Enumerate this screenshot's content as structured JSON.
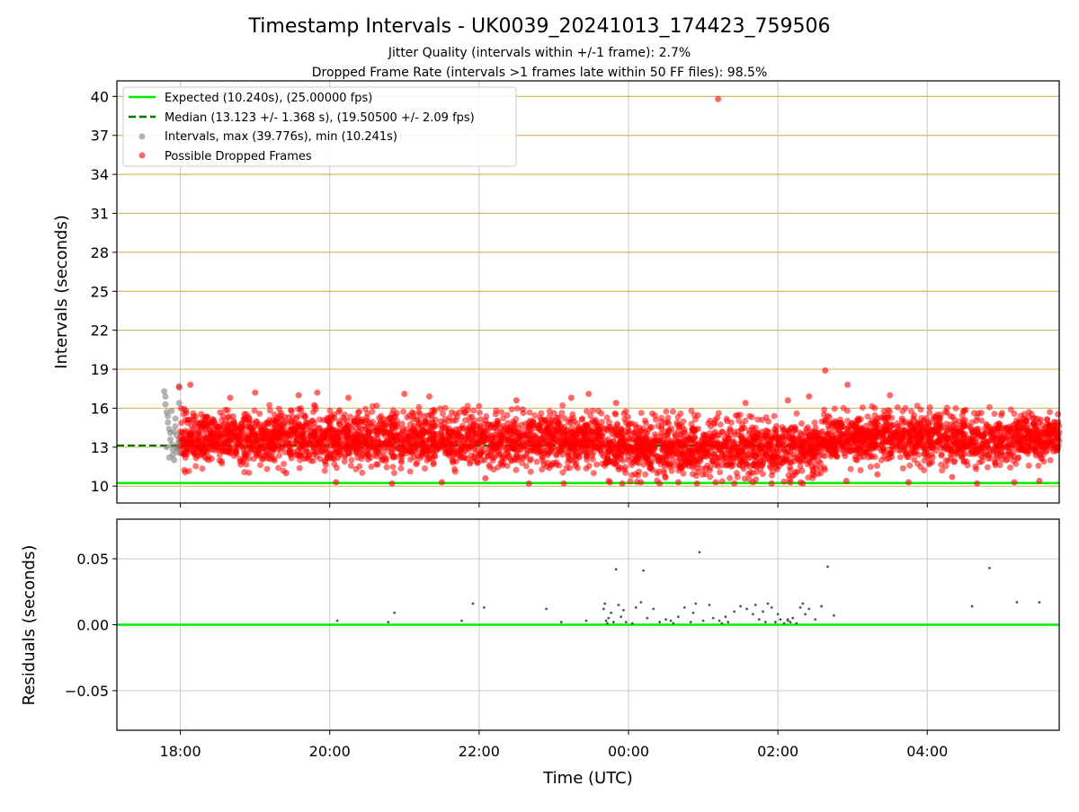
{
  "figure": {
    "title": "Timestamp Intervals - UK0039_20241013_174423_759506",
    "subtitle1": "Jitter Quality (intervals within +/-1 frame): 2.7%",
    "subtitle2": "Dropped Frame Rate (intervals >1 frames late within 50 FF files): 98.5%"
  },
  "colors": {
    "expected": "#00ee00",
    "median": "#007700",
    "intervals": "#808080",
    "dropped": "#ff0000",
    "hgrid": "#d4b864",
    "vgrid": "#c8c8c8",
    "residual": "#555555"
  },
  "chart_data": [
    {
      "type": "scatter",
      "ylabel": "Intervals (seconds)",
      "ylim": [
        8.7,
        41.2
      ],
      "xlim": [
        "17:09",
        "05:46"
      ],
      "yticks": [
        10,
        13,
        16,
        19,
        22,
        25,
        28,
        31,
        34,
        37,
        40
      ],
      "grid": true,
      "legend_position": "top-left",
      "legend": [
        {
          "label": "Expected (10.240s), (25.00000 fps)",
          "style": "line-solid"
        },
        {
          "label": "Median (13.123 +/- 1.368 s), (19.50500 +/- 2.09 fps)",
          "style": "line-dashed"
        },
        {
          "label": "Intervals, max (39.776s), min (10.241s)",
          "style": "dot-gray"
        },
        {
          "label": "Possible Dropped Frames",
          "style": "dot-red"
        }
      ],
      "expected_value": 10.24,
      "median_value": 13.123,
      "median_end": "02:55",
      "series": [
        {
          "name": "Intervals",
          "points": [
            [
              "17:47",
              17.3
            ],
            [
              "17:48",
              16.9
            ],
            [
              "17:48",
              16.3
            ],
            [
              "17:49",
              15.7
            ],
            [
              "17:50",
              15.4
            ],
            [
              "17:50",
              14.9
            ],
            [
              "17:51",
              14.4
            ],
            [
              "17:52",
              14.1
            ],
            [
              "17:52",
              13.6
            ],
            [
              "17:53",
              13.2
            ],
            [
              "17:54",
              12.8
            ],
            [
              "17:54",
              12.4
            ],
            [
              "17:55",
              12.0
            ],
            [
              "17:56",
              15.2
            ],
            [
              "17:56",
              14.6
            ],
            [
              "17:57",
              13.9
            ],
            [
              "17:58",
              13.3
            ],
            [
              "17:58",
              12.6
            ],
            [
              "17:59",
              17.7
            ],
            [
              "17:59",
              16.4
            ],
            [
              "17:49",
              13.0
            ],
            [
              "17:51",
              12.2
            ],
            [
              "17:53",
              15.8
            ],
            [
              "17:55",
              14.2
            ],
            [
              "17:57",
              12.9
            ]
          ]
        },
        {
          "name": "Possible Dropped Frames",
          "points": [
            [
              "01:12",
              39.8
            ],
            [
              "02:38",
              18.9
            ],
            [
              "02:56",
              17.8
            ],
            [
              "03:30",
              17.0
            ],
            [
              "17:59",
              17.6
            ],
            [
              "18:08",
              17.8
            ],
            [
              "18:40",
              16.8
            ],
            [
              "19:00",
              17.2
            ],
            [
              "19:35",
              17.0
            ],
            [
              "19:50",
              17.2
            ],
            [
              "20:15",
              16.8
            ],
            [
              "21:00",
              17.1
            ],
            [
              "21:20",
              16.9
            ],
            [
              "22:30",
              16.6
            ],
            [
              "23:14",
              16.8
            ],
            [
              "23:28",
              17.1
            ],
            [
              "23:50",
              16.4
            ],
            [
              "01:34",
              16.4
            ],
            [
              "02:08",
              16.6
            ],
            [
              "02:25",
              16.9
            ],
            [
              "20:05",
              10.3
            ],
            [
              "20:50",
              10.2
            ],
            [
              "21:30",
              10.3
            ],
            [
              "22:40",
              10.2
            ],
            [
              "23:08",
              10.2
            ],
            [
              "23:45",
              10.3
            ],
            [
              "23:55",
              10.2
            ],
            [
              "00:10",
              10.3
            ],
            [
              "00:25",
              10.2
            ],
            [
              "00:40",
              10.3
            ],
            [
              "00:55",
              10.2
            ],
            [
              "01:10",
              10.3
            ],
            [
              "01:25",
              10.2
            ],
            [
              "01:40",
              10.3
            ],
            [
              "01:55",
              10.2
            ],
            [
              "02:10",
              10.3
            ],
            [
              "02:20",
              10.2
            ],
            [
              "02:55",
              10.4
            ],
            [
              "03:45",
              10.3
            ],
            [
              "04:40",
              10.2
            ],
            [
              "05:10",
              10.3
            ],
            [
              "05:30",
              10.4
            ],
            [
              "19:25",
              11.0
            ],
            [
              "22:05",
              10.6
            ],
            [
              "03:20",
              10.9
            ],
            [
              "04:20",
              10.7
            ]
          ]
        }
      ],
      "dense_band": {
        "from": "17:59",
        "to": "05:46",
        "segments": [
          {
            "from": "17:59",
            "to": "23:40",
            "low": 11.0,
            "high": 16.3
          },
          {
            "from": "23:40",
            "to": "02:35",
            "low": 10.24,
            "high": 15.8
          },
          {
            "from": "02:35",
            "to": "05:46",
            "low": 11.2,
            "high": 16.2
          }
        ]
      }
    },
    {
      "type": "scatter",
      "xlabel": "Time (UTC)",
      "ylabel": "Residuals (seconds)",
      "ylim": [
        -0.08,
        0.08
      ],
      "yticks": [
        0.05,
        0.0,
        -0.05
      ],
      "ytick_labels": [
        "0.05",
        "0.00",
        "−0.05"
      ],
      "xticks": [
        "18:00",
        "20:00",
        "22:00",
        "00:00",
        "02:00",
        "04:00"
      ],
      "grid": true,
      "zero_line": 0.0,
      "series": [
        {
          "name": "Residuals",
          "points": [
            [
              "20:06",
              0.003
            ],
            [
              "20:47",
              0.002
            ],
            [
              "20:52",
              0.009
            ],
            [
              "21:46",
              0.003
            ],
            [
              "21:55",
              0.016
            ],
            [
              "22:04",
              0.013
            ],
            [
              "22:54",
              0.012
            ],
            [
              "23:06",
              0.002
            ],
            [
              "23:26",
              0.003
            ],
            [
              "23:40",
              0.012
            ],
            [
              "23:41",
              0.016
            ],
            [
              "23:42",
              0.003
            ],
            [
              "23:44",
              0.005
            ],
            [
              "23:46",
              0.009
            ],
            [
              "23:48",
              0.002
            ],
            [
              "23:50",
              0.042
            ],
            [
              "23:52",
              0.015
            ],
            [
              "23:54",
              0.006
            ],
            [
              "23:56",
              0.011
            ],
            [
              "23:58",
              0.002
            ],
            [
              "00:03",
              0.001
            ],
            [
              "00:06",
              0.013
            ],
            [
              "00:10",
              0.017
            ],
            [
              "00:12",
              0.041
            ],
            [
              "00:15",
              0.005
            ],
            [
              "00:20",
              0.012
            ],
            [
              "00:25",
              0.002
            ],
            [
              "00:30",
              0.004
            ],
            [
              "00:34",
              0.003
            ],
            [
              "00:40",
              0.006
            ],
            [
              "00:45",
              0.013
            ],
            [
              "00:50",
              0.002
            ],
            [
              "00:52",
              0.009
            ],
            [
              "00:54",
              0.016
            ],
            [
              "00:57",
              0.055
            ],
            [
              "01:00",
              0.003
            ],
            [
              "01:05",
              0.015
            ],
            [
              "01:08",
              0.005
            ],
            [
              "01:13",
              0.003
            ],
            [
              "01:15",
              0.001
            ],
            [
              "01:20",
              0.002
            ],
            [
              "01:25",
              0.01
            ],
            [
              "01:30",
              0.014
            ],
            [
              "01:35",
              0.012
            ],
            [
              "01:40",
              0.008
            ],
            [
              "01:42",
              0.015
            ],
            [
              "01:45",
              0.004
            ],
            [
              "01:48",
              0.01
            ],
            [
              "01:50",
              0.002
            ],
            [
              "01:52",
              0.016
            ],
            [
              "01:55",
              0.013
            ],
            [
              "01:58",
              0.002
            ],
            [
              "02:00",
              0.008
            ],
            [
              "02:02",
              0.004
            ],
            [
              "02:05",
              0.001
            ],
            [
              "02:08",
              0.003
            ],
            [
              "02:10",
              0.002
            ],
            [
              "02:12",
              0.005
            ],
            [
              "02:15",
              0.001
            ],
            [
              "02:18",
              0.013
            ],
            [
              "02:20",
              0.016
            ],
            [
              "02:22",
              0.008
            ],
            [
              "02:25",
              0.012
            ],
            [
              "02:30",
              0.004
            ],
            [
              "02:35",
              0.014
            ],
            [
              "02:40",
              0.044
            ],
            [
              "02:45",
              0.007
            ],
            [
              "04:36",
              0.014
            ],
            [
              "04:50",
              0.043
            ],
            [
              "05:12",
              0.017
            ],
            [
              "05:30",
              0.017
            ],
            [
              "23:43",
              0.001
            ],
            [
              "00:36",
              0.001
            ],
            [
              "01:18",
              0.006
            ],
            [
              "02:08",
              0.004
            ]
          ]
        }
      ]
    }
  ]
}
